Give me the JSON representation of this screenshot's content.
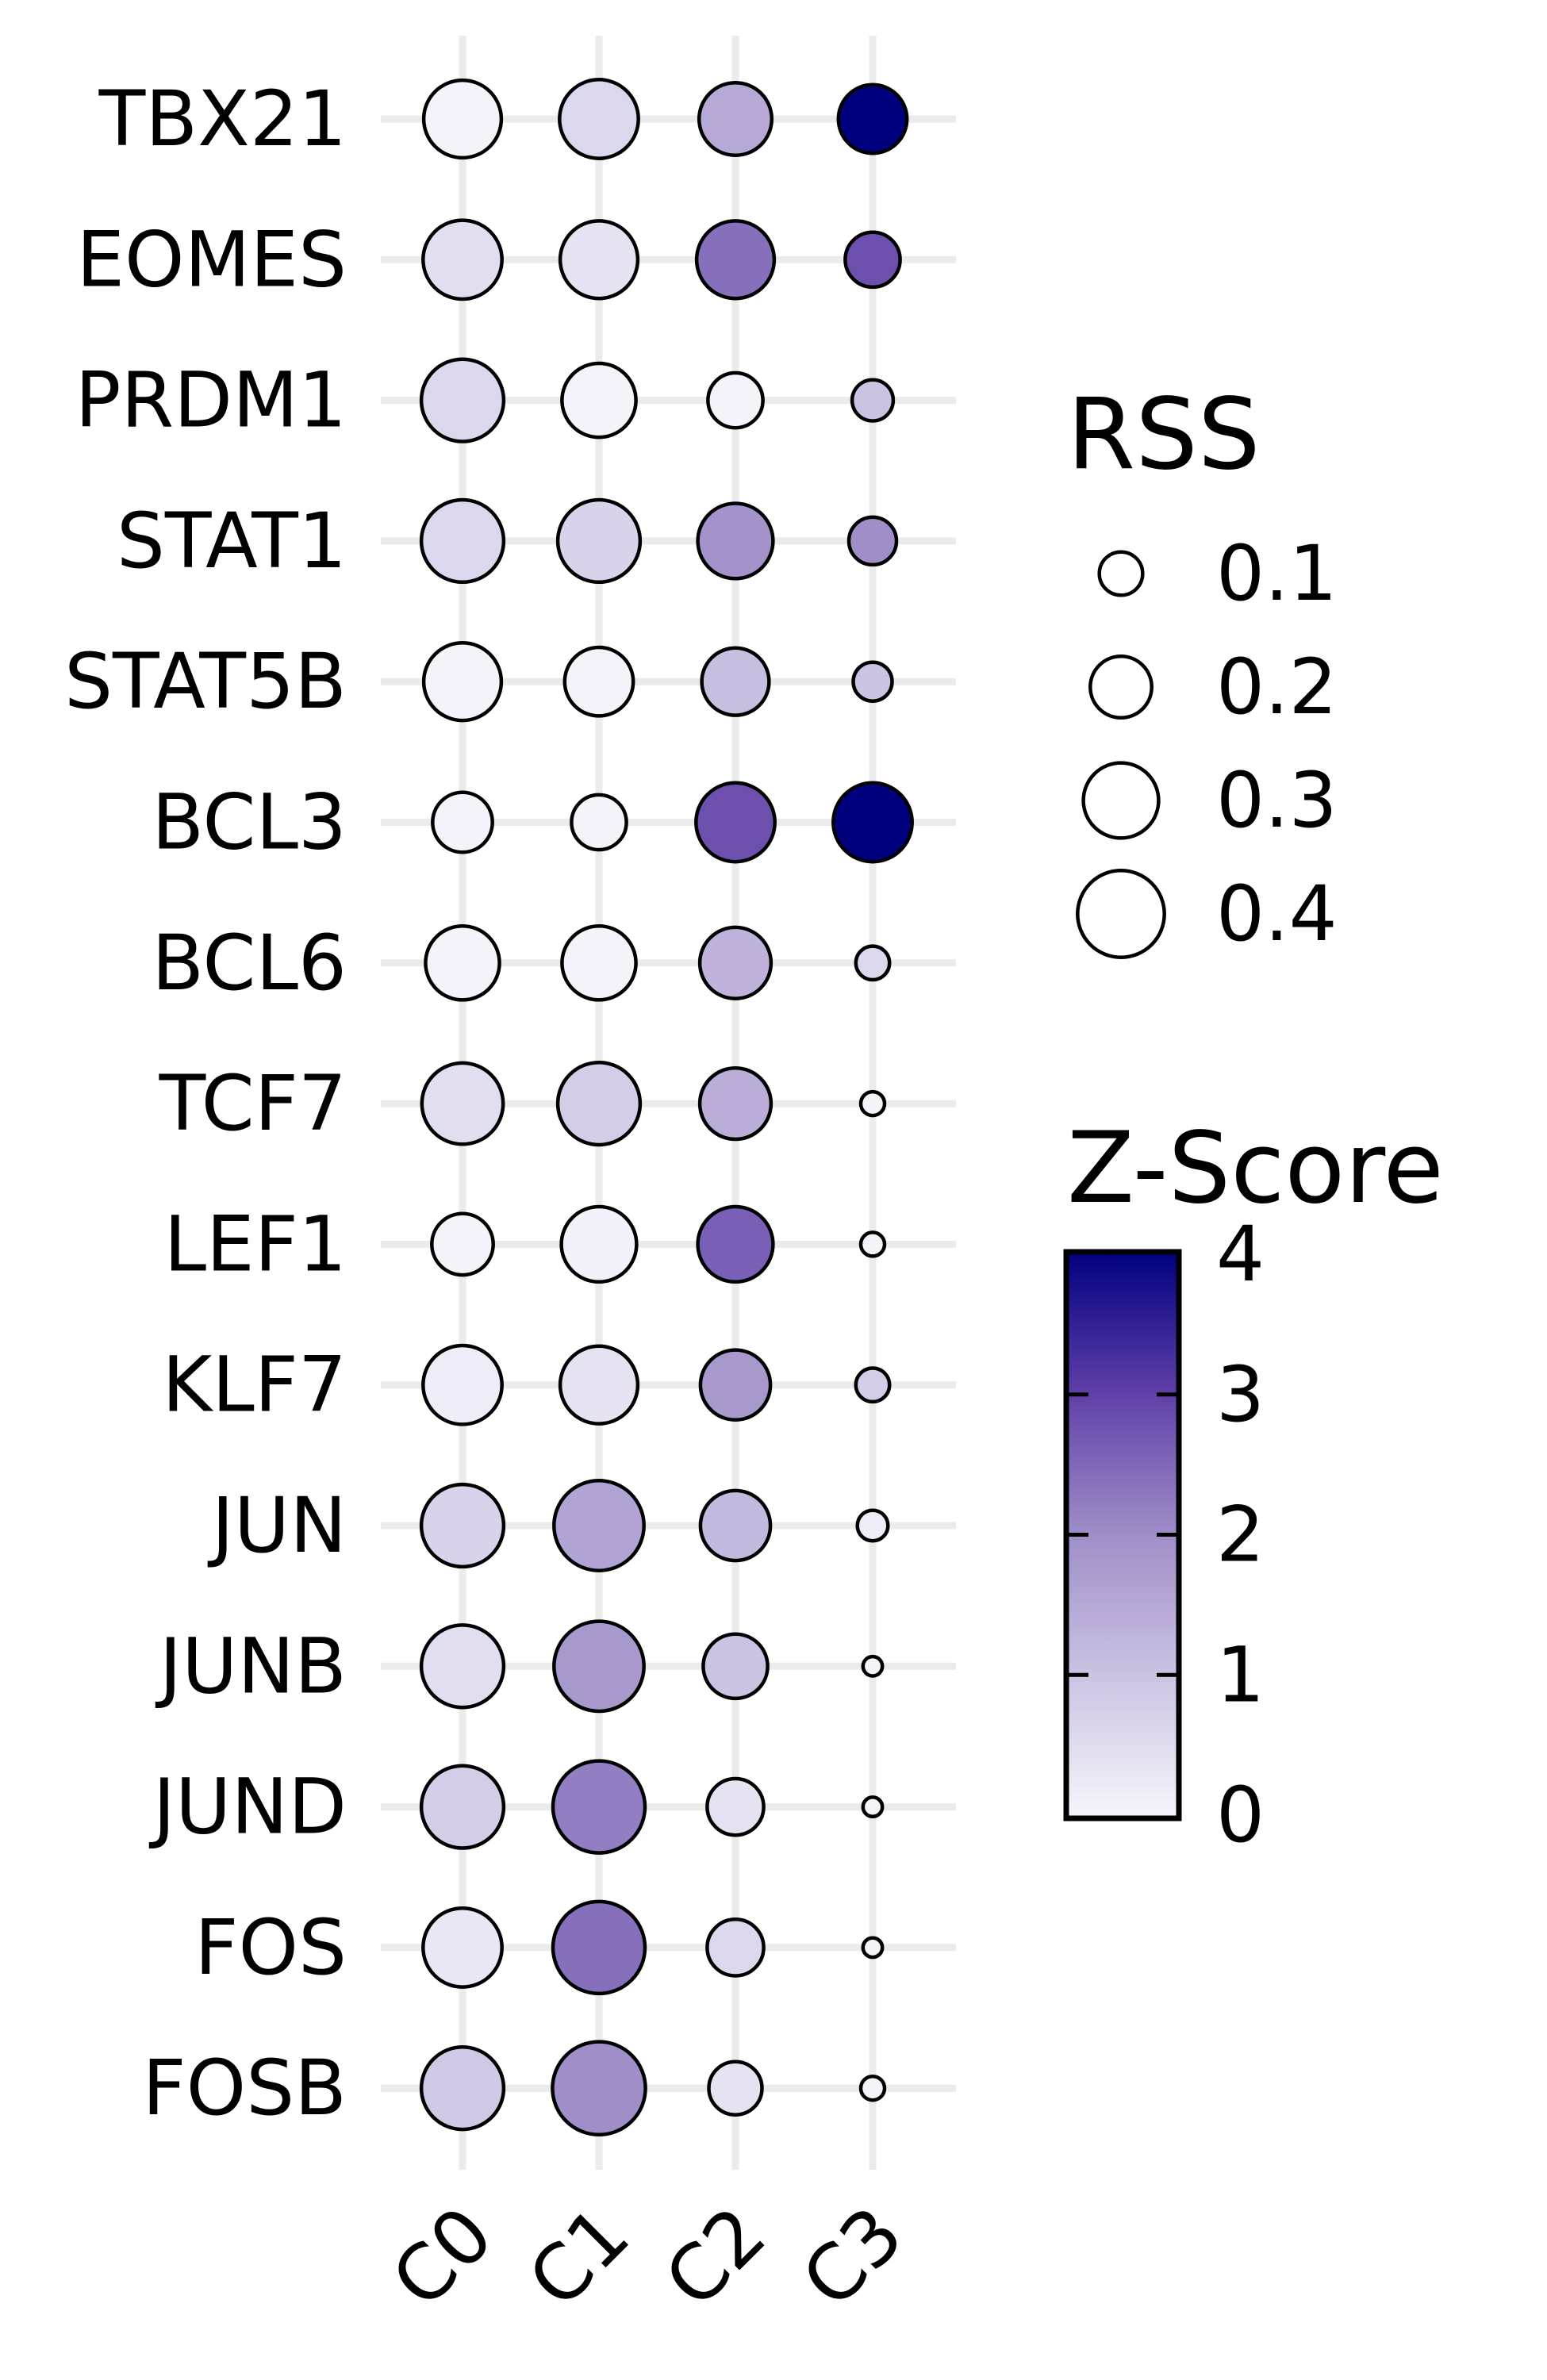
{
  "chart_data": {
    "type": "dot",
    "categories": [
      "C0",
      "C1",
      "C2",
      "C3"
    ],
    "genes": [
      "TBX21",
      "EOMES",
      "PRDM1",
      "STAT1",
      "STAT5B",
      "BCL3",
      "BCL6",
      "TCF7",
      "LEF1",
      "KLF7",
      "JUN",
      "JUNB",
      "JUND",
      "FOS",
      "FOSB"
    ],
    "points": [
      {
        "gene": "TBX21",
        "values": [
          {
            "rss": 0.32,
            "z": 0.05
          },
          {
            "rss": 0.33,
            "z": 0.6
          },
          {
            "rss": 0.28,
            "z": 1.5
          },
          {
            "rss": 0.25,
            "z": 4.0
          }
        ]
      },
      {
        "gene": "EOMES",
        "values": [
          {
            "rss": 0.33,
            "z": 0.5
          },
          {
            "rss": 0.32,
            "z": 0.4
          },
          {
            "rss": 0.32,
            "z": 2.4
          },
          {
            "rss": 0.16,
            "z": 2.8
          }
        ]
      },
      {
        "gene": "PRDM1",
        "values": [
          {
            "rss": 0.36,
            "z": 0.6
          },
          {
            "rss": 0.29,
            "z": 0.05
          },
          {
            "rss": 0.16,
            "z": 0.05
          },
          {
            "rss": 0.09,
            "z": 1.0
          }
        ]
      },
      {
        "gene": "STAT1",
        "values": [
          {
            "rss": 0.36,
            "z": 0.6
          },
          {
            "rss": 0.36,
            "z": 0.7
          },
          {
            "rss": 0.3,
            "z": 1.9
          },
          {
            "rss": 0.12,
            "z": 2.0
          }
        ]
      },
      {
        "gene": "STAT5B",
        "values": [
          {
            "rss": 0.32,
            "z": 0.05
          },
          {
            "rss": 0.25,
            "z": 0.05
          },
          {
            "rss": 0.24,
            "z": 1.1
          },
          {
            "rss": 0.08,
            "z": 1.0
          }
        ]
      },
      {
        "gene": "BCL3",
        "values": [
          {
            "rss": 0.19,
            "z": 0.05
          },
          {
            "rss": 0.16,
            "z": 0.05
          },
          {
            "rss": 0.33,
            "z": 2.8
          },
          {
            "rss": 0.33,
            "z": 4.0
          }
        ]
      },
      {
        "gene": "BCL6",
        "values": [
          {
            "rss": 0.29,
            "z": 0.05
          },
          {
            "rss": 0.29,
            "z": 0.05
          },
          {
            "rss": 0.27,
            "z": 1.3
          },
          {
            "rss": 0.06,
            "z": 0.6
          }
        ]
      },
      {
        "gene": "TCF7",
        "values": [
          {
            "rss": 0.35,
            "z": 0.5
          },
          {
            "rss": 0.36,
            "z": 0.8
          },
          {
            "rss": 0.27,
            "z": 1.4
          },
          {
            "rss": 0.03,
            "z": 0.05
          }
        ]
      },
      {
        "gene": "LEF1",
        "values": [
          {
            "rss": 0.2,
            "z": 0.05
          },
          {
            "rss": 0.3,
            "z": 0.1
          },
          {
            "rss": 0.3,
            "z": 2.6
          },
          {
            "rss": 0.03,
            "z": 0.05
          }
        ]
      },
      {
        "gene": "KLF7",
        "values": [
          {
            "rss": 0.33,
            "z": 0.2
          },
          {
            "rss": 0.32,
            "z": 0.4
          },
          {
            "rss": 0.26,
            "z": 1.8
          },
          {
            "rss": 0.06,
            "z": 0.8
          }
        ]
      },
      {
        "gene": "JUN",
        "values": [
          {
            "rss": 0.36,
            "z": 0.7
          },
          {
            "rss": 0.43,
            "z": 1.6
          },
          {
            "rss": 0.26,
            "z": 1.2
          },
          {
            "rss": 0.05,
            "z": 0.2
          }
        ]
      },
      {
        "gene": "JUNB",
        "values": [
          {
            "rss": 0.36,
            "z": 0.5
          },
          {
            "rss": 0.43,
            "z": 1.8
          },
          {
            "rss": 0.22,
            "z": 1.0
          },
          {
            "rss": 0.02,
            "z": 0.05
          }
        ]
      },
      {
        "gene": "JUND",
        "values": [
          {
            "rss": 0.36,
            "z": 0.8
          },
          {
            "rss": 0.45,
            "z": 2.2
          },
          {
            "rss": 0.17,
            "z": 0.4
          },
          {
            "rss": 0.02,
            "z": 0.05
          }
        ]
      },
      {
        "gene": "FOS",
        "values": [
          {
            "rss": 0.33,
            "z": 0.3
          },
          {
            "rss": 0.45,
            "z": 2.4
          },
          {
            "rss": 0.17,
            "z": 0.6
          },
          {
            "rss": 0.02,
            "z": 0.05
          }
        ]
      },
      {
        "gene": "FOSB",
        "values": [
          {
            "rss": 0.36,
            "z": 0.9
          },
          {
            "rss": 0.46,
            "z": 2.0
          },
          {
            "rss": 0.15,
            "z": 0.4
          },
          {
            "rss": 0.03,
            "z": 0.05
          }
        ]
      }
    ],
    "size_legend": {
      "title": "RSS",
      "values": [
        0.1,
        0.2,
        0.3,
        0.4
      ],
      "labels": [
        "0.1",
        "0.2",
        "0.3",
        "0.4"
      ]
    },
    "color_legend": {
      "title": "Z-Score",
      "range": [
        0,
        4
      ],
      "ticks": [
        "0",
        "1",
        "2",
        "3",
        "4"
      ]
    },
    "colors": {
      "low": "#f7f6fb",
      "mid": "#9f8ec8",
      "high": "#00007f"
    },
    "grid": true
  }
}
